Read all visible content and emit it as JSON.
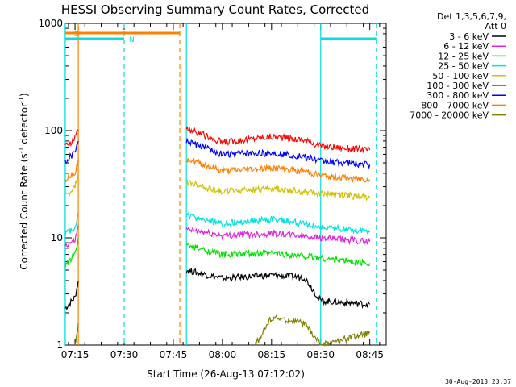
{
  "chart_data": {
    "type": "line",
    "title": "HESSI Observing Summary Count Rates, Corrected",
    "xlabel": "Start Time (26-Aug-13 07:12:02)",
    "ylabel_main": "Corrected Count Rate (s",
    "ylabel_sup1": "-1",
    "ylabel_mid": " detector",
    "ylabel_sup2": "-1",
    "ylabel_end": ")",
    "yscale": "log",
    "ylim": [
      1,
      1000
    ],
    "xlim": [
      "07:12:02",
      "08:50"
    ],
    "x_ticks": [
      "07:15",
      "07:30",
      "07:45",
      "08:00",
      "08:15",
      "08:30",
      "08:45"
    ],
    "y_ticks": [
      "1",
      "10",
      "100",
      "1000"
    ],
    "legend_header": [
      "Det 1,3,5,6,7,9,",
      "Att 0"
    ],
    "series": [
      {
        "name": "3 - 6 keV",
        "color": "#000000",
        "segments": [
          [
            [
              "07:12",
              2.2
            ],
            [
              "07:15",
              2.8
            ],
            [
              "07:16",
              4.0
            ]
          ],
          [
            [
              "07:49",
              5.0
            ],
            [
              "08:00",
              4.2
            ],
            [
              "08:15",
              4.5
            ],
            [
              "08:25",
              4.3
            ],
            [
              "08:30",
              2.6
            ],
            [
              "08:45",
              2.4
            ]
          ]
        ]
      },
      {
        "name": "6 - 12 keV",
        "color": "#e020e0",
        "segments": [
          [
            [
              "07:12",
              8.5
            ],
            [
              "07:15",
              9.5
            ],
            [
              "07:16",
              13
            ]
          ],
          [
            [
              "07:49",
              12
            ],
            [
              "08:00",
              10.5
            ],
            [
              "08:15",
              11
            ],
            [
              "08:25",
              10.5
            ],
            [
              "08:30",
              10
            ],
            [
              "08:45",
              9.2
            ]
          ]
        ]
      },
      {
        "name": "12 - 25 keV",
        "color": "#00e000",
        "segments": [
          [
            [
              "07:12",
              5.5
            ],
            [
              "07:15",
              7.0
            ],
            [
              "07:16",
              10
            ]
          ],
          [
            [
              "07:49",
              8.5
            ],
            [
              "08:00",
              7.0
            ],
            [
              "08:15",
              7.2
            ],
            [
              "08:25",
              6.8
            ],
            [
              "08:30",
              6.5
            ],
            [
              "08:45",
              5.8
            ]
          ]
        ]
      },
      {
        "name": "25 - 50 keV",
        "color": "#00e0e0",
        "segments": [
          [
            [
              "07:12",
              11
            ],
            [
              "07:15",
              12.5
            ],
            [
              "07:16",
              17
            ]
          ],
          [
            [
              "07:49",
              16
            ],
            [
              "08:00",
              13.5
            ],
            [
              "08:15",
              15
            ],
            [
              "08:25",
              13.5
            ],
            [
              "08:30",
              12.5
            ],
            [
              "08:45",
              11.5
            ]
          ]
        ]
      },
      {
        "name": "50 - 100 keV",
        "color": "#d0c000",
        "segments": [
          [
            [
              "07:12",
              24
            ],
            [
              "07:15",
              30
            ],
            [
              "07:16",
              40
            ]
          ],
          [
            [
              "07:49",
              33
            ],
            [
              "08:00",
              27
            ],
            [
              "08:15",
              29
            ],
            [
              "08:25",
              27
            ],
            [
              "08:30",
              26
            ],
            [
              "08:45",
              24
            ]
          ]
        ]
      },
      {
        "name": "100 - 300 keV",
        "color": "#ff0000",
        "segments": [
          [
            [
              "07:12",
              70
            ],
            [
              "07:15",
              85
            ],
            [
              "07:16",
              100
            ]
          ],
          [
            [
              "07:49",
              105
            ],
            [
              "08:00",
              78
            ],
            [
              "08:15",
              88
            ],
            [
              "08:25",
              82
            ],
            [
              "08:30",
              72
            ],
            [
              "08:45",
              66
            ]
          ]
        ]
      },
      {
        "name": "300 - 800 keV",
        "color": "#0000ff",
        "segments": [
          [
            [
              "07:12",
              52
            ],
            [
              "07:15",
              62
            ],
            [
              "07:16",
              80
            ]
          ],
          [
            [
              "07:49",
              80
            ],
            [
              "08:00",
              60
            ],
            [
              "08:15",
              62
            ],
            [
              "08:25",
              57
            ],
            [
              "08:30",
              52
            ],
            [
              "08:45",
              48
            ]
          ]
        ]
      },
      {
        "name": "800 - 7000 keV",
        "color": "#ff8000",
        "segments": [
          [
            [
              "07:12",
              35
            ],
            [
              "07:15",
              40
            ],
            [
              "07:16",
              55
            ]
          ],
          [
            [
              "07:49",
              55
            ],
            [
              "08:00",
              42
            ],
            [
              "08:15",
              45
            ],
            [
              "08:25",
              42
            ],
            [
              "08:30",
              38
            ],
            [
              "08:45",
              35
            ]
          ]
        ]
      },
      {
        "name": "7000 - 20000 keV",
        "color": "#808000",
        "segments": [
          [
            [
              "07:15",
              1.0
            ],
            [
              "07:16",
              1.6
            ]
          ],
          [
            [
              "08:10",
              1.0
            ],
            [
              "08:15",
              1.8
            ],
            [
              "08:25",
              1.6
            ],
            [
              "08:30",
              1.0
            ],
            [
              "08:45",
              1.3
            ]
          ]
        ]
      }
    ],
    "flags": [
      {
        "label": "S",
        "color": "#ff8000",
        "start": "07:12",
        "end": "07:47"
      },
      {
        "label": "N",
        "color": "#00e0e0",
        "start": "07:12",
        "end": "07:30"
      },
      {
        "label": "",
        "color": "#00e0e0",
        "start": "08:30",
        "end": "08:47"
      }
    ],
    "vertical_markers": [
      {
        "time": "07:12",
        "color": "#00e0e0",
        "style": "solid"
      },
      {
        "time": "07:16",
        "color": "#ff8000",
        "style": "solid"
      },
      {
        "time": "07:30",
        "color": "#00e0e0",
        "style": "dashed"
      },
      {
        "time": "07:47",
        "color": "#ff8000",
        "style": "dashed"
      },
      {
        "time": "07:49",
        "color": "#00e0e0",
        "style": "solid"
      },
      {
        "time": "08:30",
        "color": "#00e0e0",
        "style": "solid"
      },
      {
        "time": "08:47",
        "color": "#00e0e0",
        "style": "dashed"
      }
    ],
    "timestamp": "30-Aug-2013 23:37"
  }
}
